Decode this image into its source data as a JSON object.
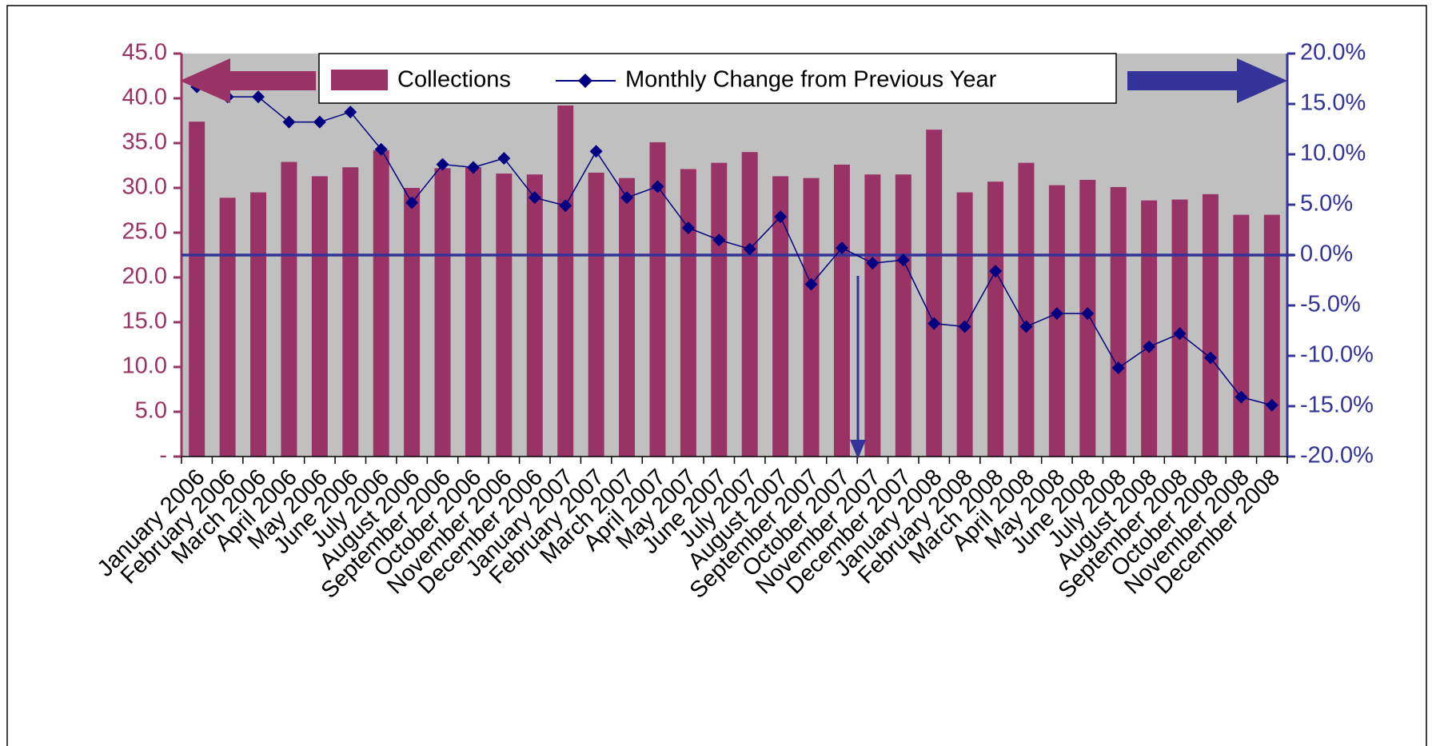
{
  "chart_data": {
    "type": "bar_line",
    "categories": [
      "January 2006",
      "February 2006",
      "March 2006",
      "April 2006",
      "May 2006",
      "June 2006",
      "July 2006",
      "August 2006",
      "September 2006",
      "October 2006",
      "November 2006",
      "December 2006",
      "January 2007",
      "February 2007",
      "March 2007",
      "April 2007",
      "May 2007",
      "June 2007",
      "July 2007",
      "August 2007",
      "September 2007",
      "October 2007",
      "November 2007",
      "December 2007",
      "January 2008",
      "February 2008",
      "March 2008",
      "April 2008",
      "May 2008",
      "June 2008",
      "July 2008",
      "August 2008",
      "September 2008",
      "October 2008",
      "November 2008",
      "December 2008"
    ],
    "series": [
      {
        "name": "Collections",
        "type": "bar",
        "color": "#993366",
        "values": [
          37.4,
          28.9,
          29.5,
          32.9,
          31.3,
          32.3,
          34.2,
          30.0,
          32.2,
          32.3,
          31.6,
          31.5,
          39.2,
          31.7,
          31.1,
          35.1,
          32.1,
          32.8,
          34.0,
          31.3,
          31.1,
          32.6,
          31.5,
          31.5,
          36.5,
          29.5,
          30.7,
          32.8,
          30.3,
          30.9,
          30.1,
          28.6,
          28.7,
          29.3,
          27.0,
          27.0
        ]
      },
      {
        "name": "Monthly Change from Previous Year",
        "type": "line",
        "axis": "y2",
        "color": "#000080",
        "values": [
          16.7,
          15.7,
          15.7,
          13.2,
          13.2,
          14.2,
          10.5,
          5.2,
          9.0,
          8.7,
          9.6,
          5.7,
          4.9,
          10.3,
          5.7,
          6.8,
          2.7,
          1.5,
          0.6,
          3.8,
          -2.9,
          0.7,
          -0.8,
          -0.5,
          -6.8,
          -7.1,
          -1.6,
          -7.1,
          -5.8,
          -5.8,
          -11.2,
          -9.1,
          -7.8,
          -10.2,
          -14.1,
          -14.9
        ]
      }
    ],
    "ylim": [
      0,
      45
    ],
    "yticks": [
      {
        "value": 0,
        "label": "-"
      },
      {
        "value": 5,
        "label": "5.0"
      },
      {
        "value": 10,
        "label": "10.0"
      },
      {
        "value": 15,
        "label": "15.0"
      },
      {
        "value": 20,
        "label": "20.0"
      },
      {
        "value": 25,
        "label": "25.0"
      },
      {
        "value": 30,
        "label": "30.0"
      },
      {
        "value": 35,
        "label": "35.0"
      },
      {
        "value": 40,
        "label": "40.0"
      },
      {
        "value": 45,
        "label": "45.0"
      }
    ],
    "y2lim": [
      -20,
      20
    ],
    "y2ticks": [
      {
        "value": -20,
        "label": "-20.0%"
      },
      {
        "value": -15,
        "label": "-15.0%"
      },
      {
        "value": -10,
        "label": "-10.0%"
      },
      {
        "value": -5,
        "label": "-5.0%"
      },
      {
        "value": 0,
        "label": "0.0%"
      },
      {
        "value": 5,
        "label": "5.0%"
      },
      {
        "value": 10,
        "label": "10.0%"
      },
      {
        "value": 15,
        "label": "15.0%"
      },
      {
        "value": 20,
        "label": "20.0%"
      }
    ],
    "grid": false
  }
}
